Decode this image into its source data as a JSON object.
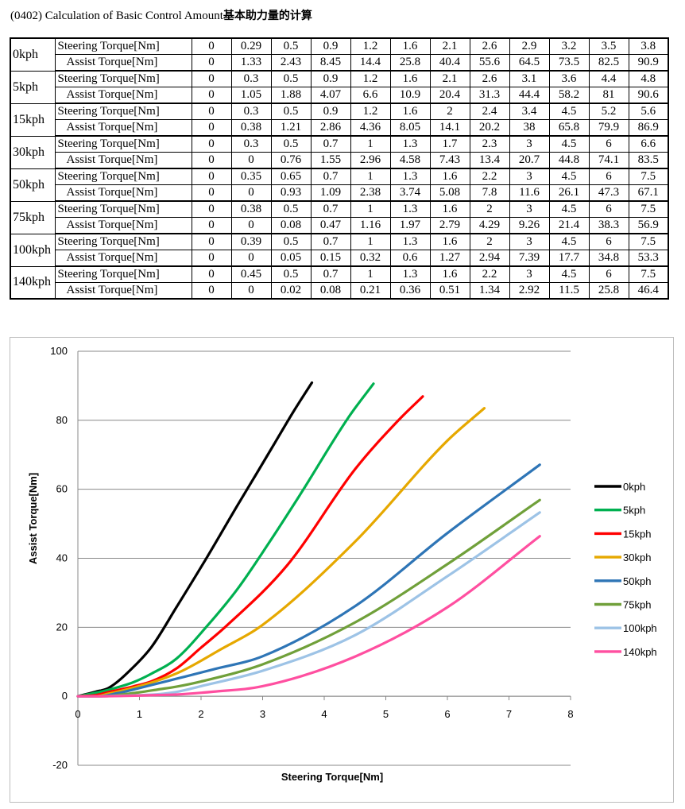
{
  "title": {
    "prefix": "(0402) Calculation of Basic Control Amount",
    "cjk": "基本助力量的计算"
  },
  "table": {
    "steering_label": "Steering Torque[Nm]",
    "assist_label": "Assist Torque[Nm]",
    "groups": [
      {
        "speed": "0kph",
        "steering": [
          "0",
          "0.29",
          "0.5",
          "0.9",
          "1.2",
          "1.6",
          "2.1",
          "2.6",
          "2.9",
          "3.2",
          "3.5",
          "3.8"
        ],
        "assist": [
          "0",
          "1.33",
          "2.43",
          "8.45",
          "14.4",
          "25.8",
          "40.4",
          "55.6",
          "64.5",
          "73.5",
          "82.5",
          "90.9"
        ]
      },
      {
        "speed": "5kph",
        "steering": [
          "0",
          "0.3",
          "0.5",
          "0.9",
          "1.2",
          "1.6",
          "2.1",
          "2.6",
          "3.1",
          "3.6",
          "4.4",
          "4.8"
        ],
        "assist": [
          "0",
          "1.05",
          "1.88",
          "4.07",
          "6.6",
          "10.9",
          "20.4",
          "31.3",
          "44.4",
          "58.2",
          "81",
          "90.6"
        ]
      },
      {
        "speed": "15kph",
        "steering": [
          "0",
          "0.3",
          "0.5",
          "0.9",
          "1.2",
          "1.6",
          "2",
          "2.4",
          "3.4",
          "4.5",
          "5.2",
          "5.6"
        ],
        "assist": [
          "0",
          "0.38",
          "1.21",
          "2.86",
          "4.36",
          "8.05",
          "14.1",
          "20.2",
          "38",
          "65.8",
          "79.9",
          "86.9"
        ]
      },
      {
        "speed": "30kph",
        "steering": [
          "0",
          "0.3",
          "0.5",
          "0.7",
          "1",
          "1.3",
          "1.7",
          "2.3",
          "3",
          "4.5",
          "6",
          "6.6"
        ],
        "assist": [
          "0",
          "0",
          "0.76",
          "1.55",
          "2.96",
          "4.58",
          "7.43",
          "13.4",
          "20.7",
          "44.8",
          "74.1",
          "83.5"
        ]
      },
      {
        "speed": "50kph",
        "steering": [
          "0",
          "0.35",
          "0.65",
          "0.7",
          "1",
          "1.3",
          "1.6",
          "2.2",
          "3",
          "4.5",
          "6",
          "7.5"
        ],
        "assist": [
          "0",
          "0",
          "0.93",
          "1.09",
          "2.38",
          "3.74",
          "5.08",
          "7.8",
          "11.6",
          "26.1",
          "47.3",
          "67.1"
        ]
      },
      {
        "speed": "75kph",
        "steering": [
          "0",
          "0.38",
          "0.5",
          "0.7",
          "1",
          "1.3",
          "1.6",
          "2",
          "3",
          "4.5",
          "6",
          "7.5"
        ],
        "assist": [
          "0",
          "0",
          "0.08",
          "0.47",
          "1.16",
          "1.97",
          "2.79",
          "4.29",
          "9.26",
          "21.4",
          "38.3",
          "56.9"
        ]
      },
      {
        "speed": "100kph",
        "steering": [
          "0",
          "0.39",
          "0.5",
          "0.7",
          "1",
          "1.3",
          "1.6",
          "2",
          "3",
          "4.5",
          "6",
          "7.5"
        ],
        "assist": [
          "0",
          "0",
          "0.05",
          "0.15",
          "0.32",
          "0.6",
          "1.27",
          "2.94",
          "7.39",
          "17.7",
          "34.8",
          "53.3"
        ]
      },
      {
        "speed": "140kph",
        "steering": [
          "0",
          "0.45",
          "0.5",
          "0.7",
          "1",
          "1.3",
          "1.6",
          "2.2",
          "3",
          "4.5",
          "6",
          "7.5"
        ],
        "assist": [
          "0",
          "0",
          "0.02",
          "0.08",
          "0.21",
          "0.36",
          "0.51",
          "1.34",
          "2.92",
          "11.5",
          "25.8",
          "46.4"
        ]
      }
    ]
  },
  "chart_data": {
    "type": "line",
    "title": "",
    "xlabel": "Steering Torque[Nm]",
    "ylabel": "Assist Torque[Nm]",
    "xlim": [
      0,
      8
    ],
    "ylim": [
      -20,
      100
    ],
    "xticks": [
      0,
      1,
      2,
      3,
      4,
      5,
      6,
      7,
      8
    ],
    "yticks": [
      -20,
      0,
      20,
      40,
      60,
      80,
      100
    ],
    "grid": "horizontal",
    "legend": "right",
    "series": [
      {
        "name": "0kph",
        "color": "#000000",
        "x": [
          0,
          0.29,
          0.5,
          0.9,
          1.2,
          1.6,
          2.1,
          2.6,
          2.9,
          3.2,
          3.5,
          3.8
        ],
        "y": [
          0,
          1.33,
          2.43,
          8.45,
          14.4,
          25.8,
          40.4,
          55.6,
          64.5,
          73.5,
          82.5,
          90.9
        ]
      },
      {
        "name": "5kph",
        "color": "#00b050",
        "x": [
          0,
          0.3,
          0.5,
          0.9,
          1.2,
          1.6,
          2.1,
          2.6,
          3.1,
          3.6,
          4.4,
          4.8
        ],
        "y": [
          0,
          1.05,
          1.88,
          4.07,
          6.6,
          10.9,
          20.4,
          31.3,
          44.4,
          58.2,
          81,
          90.6
        ]
      },
      {
        "name": "15kph",
        "color": "#ff0000",
        "x": [
          0,
          0.3,
          0.5,
          0.9,
          1.2,
          1.6,
          2,
          2.4,
          3.4,
          4.5,
          5.2,
          5.6
        ],
        "y": [
          0,
          0.38,
          1.21,
          2.86,
          4.36,
          8.05,
          14.1,
          20.2,
          38,
          65.8,
          79.9,
          86.9
        ]
      },
      {
        "name": "30kph",
        "color": "#e6a800",
        "x": [
          0,
          0.3,
          0.5,
          0.7,
          1,
          1.3,
          1.7,
          2.3,
          3,
          4.5,
          6,
          6.6
        ],
        "y": [
          0,
          0,
          0.76,
          1.55,
          2.96,
          4.58,
          7.43,
          13.4,
          20.7,
          44.8,
          74.1,
          83.5
        ]
      },
      {
        "name": "50kph",
        "color": "#2e75b6",
        "x": [
          0,
          0.35,
          0.65,
          0.7,
          1,
          1.3,
          1.6,
          2.2,
          3,
          4.5,
          6,
          7.5
        ],
        "y": [
          0,
          0,
          0.93,
          1.09,
          2.38,
          3.74,
          5.08,
          7.8,
          11.6,
          26.1,
          47.3,
          67.1
        ]
      },
      {
        "name": "75kph",
        "color": "#70a03a",
        "x": [
          0,
          0.38,
          0.5,
          0.7,
          1,
          1.3,
          1.6,
          2,
          3,
          4.5,
          6,
          7.5
        ],
        "y": [
          0,
          0,
          0.08,
          0.47,
          1.16,
          1.97,
          2.79,
          4.29,
          9.26,
          21.4,
          38.3,
          56.9
        ]
      },
      {
        "name": "100kph",
        "color": "#9dc3e6",
        "x": [
          0,
          0.39,
          0.5,
          0.7,
          1,
          1.3,
          1.6,
          2,
          3,
          4.5,
          6,
          7.5
        ],
        "y": [
          0,
          0,
          0.05,
          0.15,
          0.32,
          0.6,
          1.27,
          2.94,
          7.39,
          17.7,
          34.8,
          53.3
        ]
      },
      {
        "name": "140kph",
        "color": "#ff4fa0",
        "x": [
          0,
          0.45,
          0.5,
          0.7,
          1,
          1.3,
          1.6,
          2.2,
          3,
          4.5,
          6,
          7.5
        ],
        "y": [
          0,
          0,
          0.02,
          0.08,
          0.21,
          0.36,
          0.51,
          1.34,
          2.92,
          11.5,
          25.8,
          46.4
        ]
      }
    ]
  }
}
